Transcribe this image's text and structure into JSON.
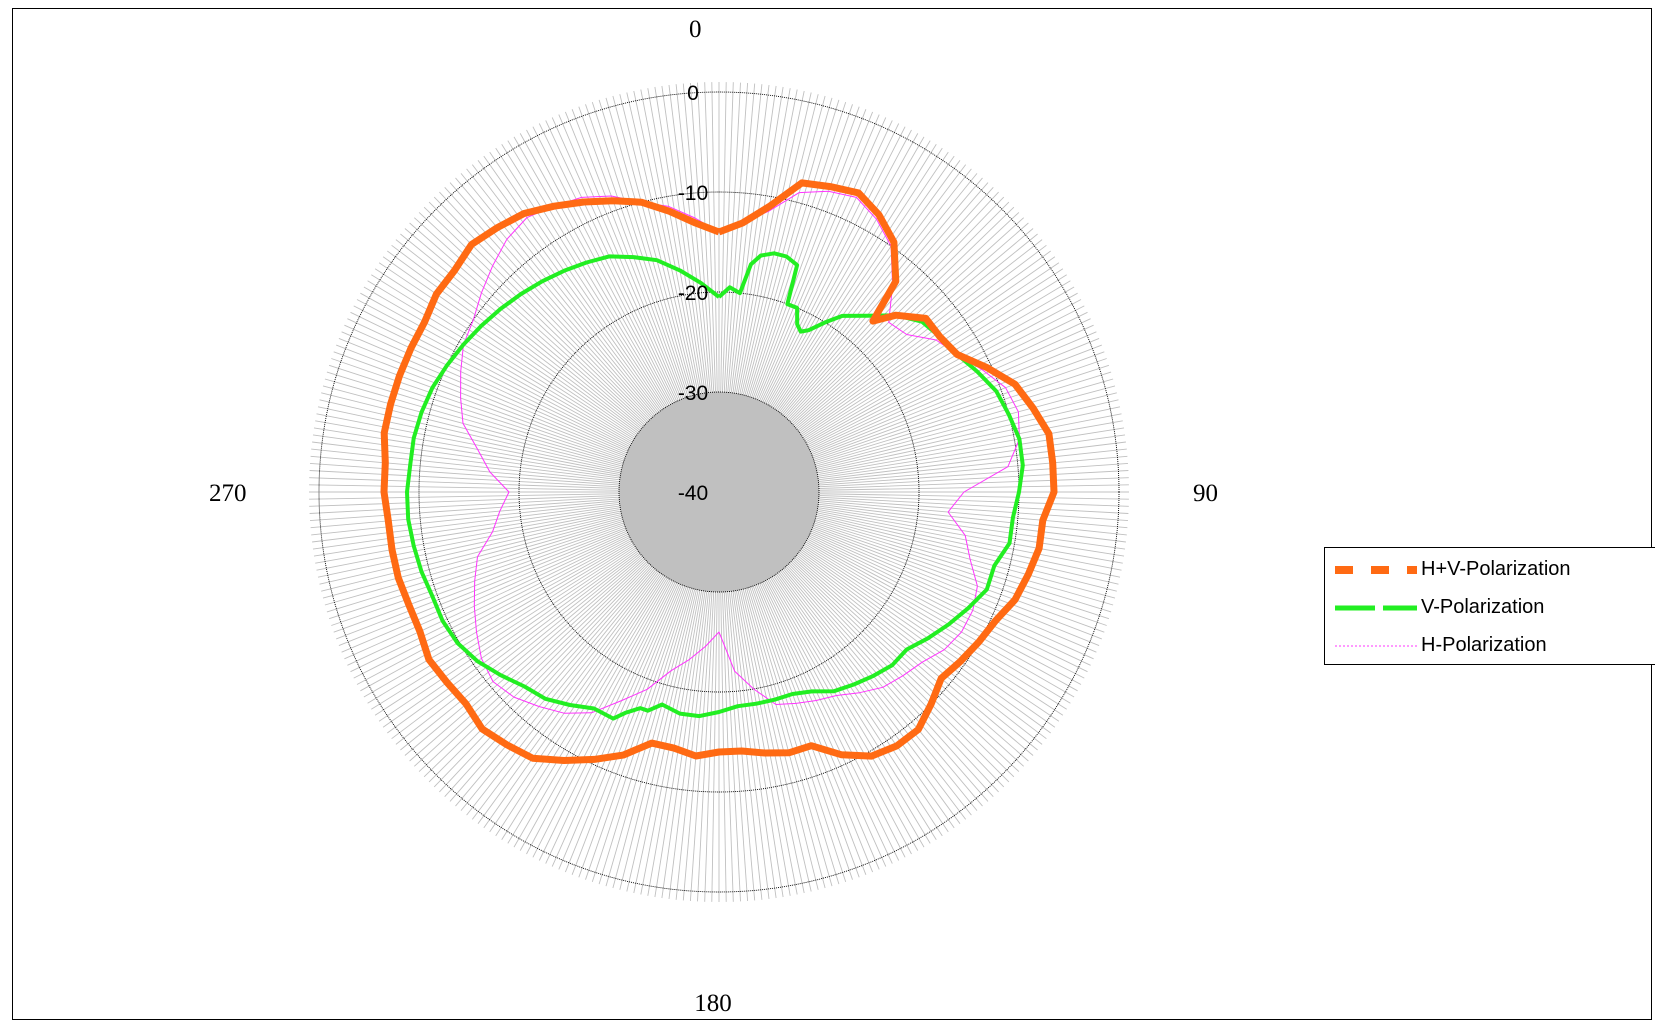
{
  "chart_data": {
    "type": "polar-line",
    "title": "",
    "angle_labels": [
      {
        "angle": 0,
        "text": "0"
      },
      {
        "angle": 90,
        "text": "90"
      },
      {
        "angle": 180,
        "text": "180"
      },
      {
        "angle": 270,
        "text": "270"
      }
    ],
    "radial_labels": [
      "0",
      "-10",
      "-20",
      "-30",
      "-40"
    ],
    "radial_range": [
      -40,
      0
    ],
    "radial_unit": "dB",
    "angular_direction": "clockwise",
    "angular_zero": "top",
    "inner_hub_fill": "#c0c0c0",
    "spoke_color": "#c0c0c0",
    "ring_color": "#000000",
    "legend_position": "right",
    "series": [
      {
        "name": "H+V-Polarization",
        "color": "#ff6a13",
        "line_style": "dashed-thick",
        "points": [
          [
            0,
            -14.0
          ],
          [
            5,
            -13.0
          ],
          [
            10,
            -11.0
          ],
          [
            15,
            -8.0
          ],
          [
            20,
            -7.5
          ],
          [
            25,
            -7.0
          ],
          [
            30,
            -8.0
          ],
          [
            35,
            -9.5
          ],
          [
            40,
            -12.5
          ],
          [
            42,
            -17.0
          ],
          [
            45,
            -15.0
          ],
          [
            50,
            -13.0
          ],
          [
            55,
            -13.0
          ],
          [
            60,
            -12.5
          ],
          [
            65,
            -10.5
          ],
          [
            70,
            -8.5
          ],
          [
            75,
            -7.5
          ],
          [
            80,
            -6.5
          ],
          [
            85,
            -6.5
          ],
          [
            90,
            -6.5
          ],
          [
            95,
            -7.5
          ],
          [
            100,
            -7.5
          ],
          [
            105,
            -8.0
          ],
          [
            110,
            -8.5
          ],
          [
            115,
            -9.5
          ],
          [
            120,
            -10.0
          ],
          [
            125,
            -10.5
          ],
          [
            130,
            -11.0
          ],
          [
            135,
            -10.0
          ],
          [
            140,
            -9.0
          ],
          [
            145,
            -9.0
          ],
          [
            150,
            -9.5
          ],
          [
            155,
            -11.0
          ],
          [
            160,
            -13.0
          ],
          [
            165,
            -13.0
          ],
          [
            170,
            -13.5
          ],
          [
            175,
            -14.0
          ],
          [
            180,
            -14.0
          ],
          [
            185,
            -13.5
          ],
          [
            190,
            -14.0
          ],
          [
            195,
            -14.0
          ],
          [
            200,
            -12.0
          ],
          [
            205,
            -10.5
          ],
          [
            210,
            -9.0
          ],
          [
            215,
            -7.5
          ],
          [
            220,
            -7.0
          ],
          [
            225,
            -6.5
          ],
          [
            230,
            -7.0
          ],
          [
            235,
            -6.8
          ],
          [
            240,
            -6.5
          ],
          [
            245,
            -7.0
          ],
          [
            250,
            -7.0
          ],
          [
            255,
            -6.8
          ],
          [
            260,
            -6.8
          ],
          [
            265,
            -6.8
          ],
          [
            270,
            -6.5
          ],
          [
            275,
            -6.5
          ],
          [
            280,
            -6.0
          ],
          [
            285,
            -6.0
          ],
          [
            290,
            -6.0
          ],
          [
            295,
            -6.0
          ],
          [
            300,
            -6.0
          ],
          [
            305,
            -5.5
          ],
          [
            310,
            -5.5
          ],
          [
            315,
            -5.0
          ],
          [
            320,
            -5.5
          ],
          [
            325,
            -6.0
          ],
          [
            330,
            -7.0
          ],
          [
            335,
            -8.0
          ],
          [
            340,
            -9.0
          ],
          [
            345,
            -10.0
          ],
          [
            350,
            -11.5
          ],
          [
            355,
            -13.0
          ],
          [
            360,
            -14.0
          ]
        ]
      },
      {
        "name": "V-Polarization",
        "color": "#22ee22",
        "line_style": "dashed-thick",
        "points": [
          [
            0,
            -20.5
          ],
          [
            3,
            -19.5
          ],
          [
            6,
            -20.0
          ],
          [
            8,
            -17.0
          ],
          [
            10,
            -16.0
          ],
          [
            13,
            -15.5
          ],
          [
            16,
            -15.5
          ],
          [
            19,
            -16.0
          ],
          [
            20,
            -20.0
          ],
          [
            23,
            -20.0
          ],
          [
            25,
            -21.5
          ],
          [
            27,
            -22.0
          ],
          [
            29,
            -21.5
          ],
          [
            32,
            -20.0
          ],
          [
            35,
            -18.5
          ],
          [
            40,
            -17.0
          ],
          [
            45,
            -15.0
          ],
          [
            50,
            -13.5
          ],
          [
            55,
            -13.0
          ],
          [
            60,
            -12.5
          ],
          [
            65,
            -11.5
          ],
          [
            70,
            -10.5
          ],
          [
            75,
            -10.0
          ],
          [
            80,
            -9.5
          ],
          [
            85,
            -9.5
          ],
          [
            90,
            -10.0
          ],
          [
            95,
            -10.5
          ],
          [
            100,
            -10.5
          ],
          [
            105,
            -11.5
          ],
          [
            110,
            -11.5
          ],
          [
            115,
            -12.5
          ],
          [
            120,
            -13.5
          ],
          [
            125,
            -14.5
          ],
          [
            130,
            -15.5
          ],
          [
            135,
            -15.5
          ],
          [
            140,
            -16.0
          ],
          [
            145,
            -16.5
          ],
          [
            150,
            -17.0
          ],
          [
            155,
            -18.0
          ],
          [
            160,
            -18.5
          ],
          [
            165,
            -18.5
          ],
          [
            170,
            -18.5
          ],
          [
            175,
            -18.5
          ],
          [
            180,
            -18.0
          ],
          [
            185,
            -17.5
          ],
          [
            190,
            -17.5
          ],
          [
            195,
            -18.0
          ],
          [
            198,
            -17.0
          ],
          [
            200,
            -17.0
          ],
          [
            203,
            -16.0
          ],
          [
            205,
            -15.0
          ],
          [
            210,
            -15.0
          ],
          [
            215,
            -14.0
          ],
          [
            220,
            -13.0
          ],
          [
            225,
            -12.5
          ],
          [
            230,
            -11.5
          ],
          [
            235,
            -10.5
          ],
          [
            240,
            -9.8
          ],
          [
            245,
            -9.5
          ],
          [
            250,
            -9.5
          ],
          [
            255,
            -9.2
          ],
          [
            260,
            -9.0
          ],
          [
            265,
            -8.8
          ],
          [
            270,
            -8.8
          ],
          [
            275,
            -9.0
          ],
          [
            280,
            -9.0
          ],
          [
            285,
            -9.2
          ],
          [
            290,
            -9.5
          ],
          [
            295,
            -10.0
          ],
          [
            300,
            -10.5
          ],
          [
            305,
            -11.0
          ],
          [
            310,
            -11.5
          ],
          [
            315,
            -12.0
          ],
          [
            320,
            -12.5
          ],
          [
            325,
            -13.0
          ],
          [
            330,
            -13.5
          ],
          [
            335,
            -14.0
          ],
          [
            340,
            -15.0
          ],
          [
            345,
            -16.0
          ],
          [
            350,
            -17.5
          ],
          [
            355,
            -19.0
          ],
          [
            360,
            -20.5
          ]
        ]
      },
      {
        "name": "H-Polarization",
        "color": "#ff33ff",
        "line_style": "dotted-thin",
        "points": [
          [
            0,
            -14.0
          ],
          [
            5,
            -13.0
          ],
          [
            10,
            -11.5
          ],
          [
            15,
            -9.0
          ],
          [
            20,
            -8.0
          ],
          [
            25,
            -7.5
          ],
          [
            30,
            -8.5
          ],
          [
            35,
            -10.0
          ],
          [
            40,
            -13.0
          ],
          [
            45,
            -16.0
          ],
          [
            50,
            -15.5
          ],
          [
            55,
            -13.5
          ],
          [
            60,
            -12.5
          ],
          [
            65,
            -11.0
          ],
          [
            70,
            -9.5
          ],
          [
            75,
            -9.0
          ],
          [
            80,
            -9.5
          ],
          [
            85,
            -11.0
          ],
          [
            90,
            -15.5
          ],
          [
            95,
            -17.0
          ],
          [
            100,
            -15.0
          ],
          [
            105,
            -14.0
          ],
          [
            110,
            -12.5
          ],
          [
            115,
            -12.0
          ],
          [
            120,
            -12.0
          ],
          [
            125,
            -12.5
          ],
          [
            130,
            -13.5
          ],
          [
            135,
            -14.0
          ],
          [
            140,
            -14.5
          ],
          [
            145,
            -15.5
          ],
          [
            150,
            -16.5
          ],
          [
            155,
            -17.0
          ],
          [
            160,
            -17.5
          ],
          [
            165,
            -18.0
          ],
          [
            170,
            -20.0
          ],
          [
            175,
            -22.0
          ],
          [
            180,
            -26.0
          ],
          [
            185,
            -24.5
          ],
          [
            190,
            -23.0
          ],
          [
            195,
            -21.5
          ],
          [
            200,
            -19.0
          ],
          [
            205,
            -17.0
          ],
          [
            210,
            -14.5
          ],
          [
            215,
            -13.0
          ],
          [
            220,
            -12.0
          ],
          [
            225,
            -11.0
          ],
          [
            230,
            -10.5
          ],
          [
            235,
            -11.0
          ],
          [
            240,
            -12.0
          ],
          [
            245,
            -13.0
          ],
          [
            250,
            -14.0
          ],
          [
            255,
            -15.0
          ],
          [
            260,
            -17.0
          ],
          [
            265,
            -18.0
          ],
          [
            270,
            -19.0
          ],
          [
            275,
            -17.0
          ],
          [
            280,
            -15.5
          ],
          [
            285,
            -13.5
          ],
          [
            290,
            -12.5
          ],
          [
            295,
            -11.5
          ],
          [
            300,
            -10.5
          ],
          [
            305,
            -10.0
          ],
          [
            310,
            -9.0
          ],
          [
            315,
            -8.0
          ],
          [
            320,
            -7.0
          ],
          [
            325,
            -6.5
          ],
          [
            330,
            -7.0
          ],
          [
            335,
            -7.5
          ],
          [
            340,
            -8.5
          ],
          [
            345,
            -10.0
          ],
          [
            350,
            -11.0
          ],
          [
            355,
            -12.5
          ],
          [
            360,
            -14.0
          ]
        ]
      }
    ]
  }
}
